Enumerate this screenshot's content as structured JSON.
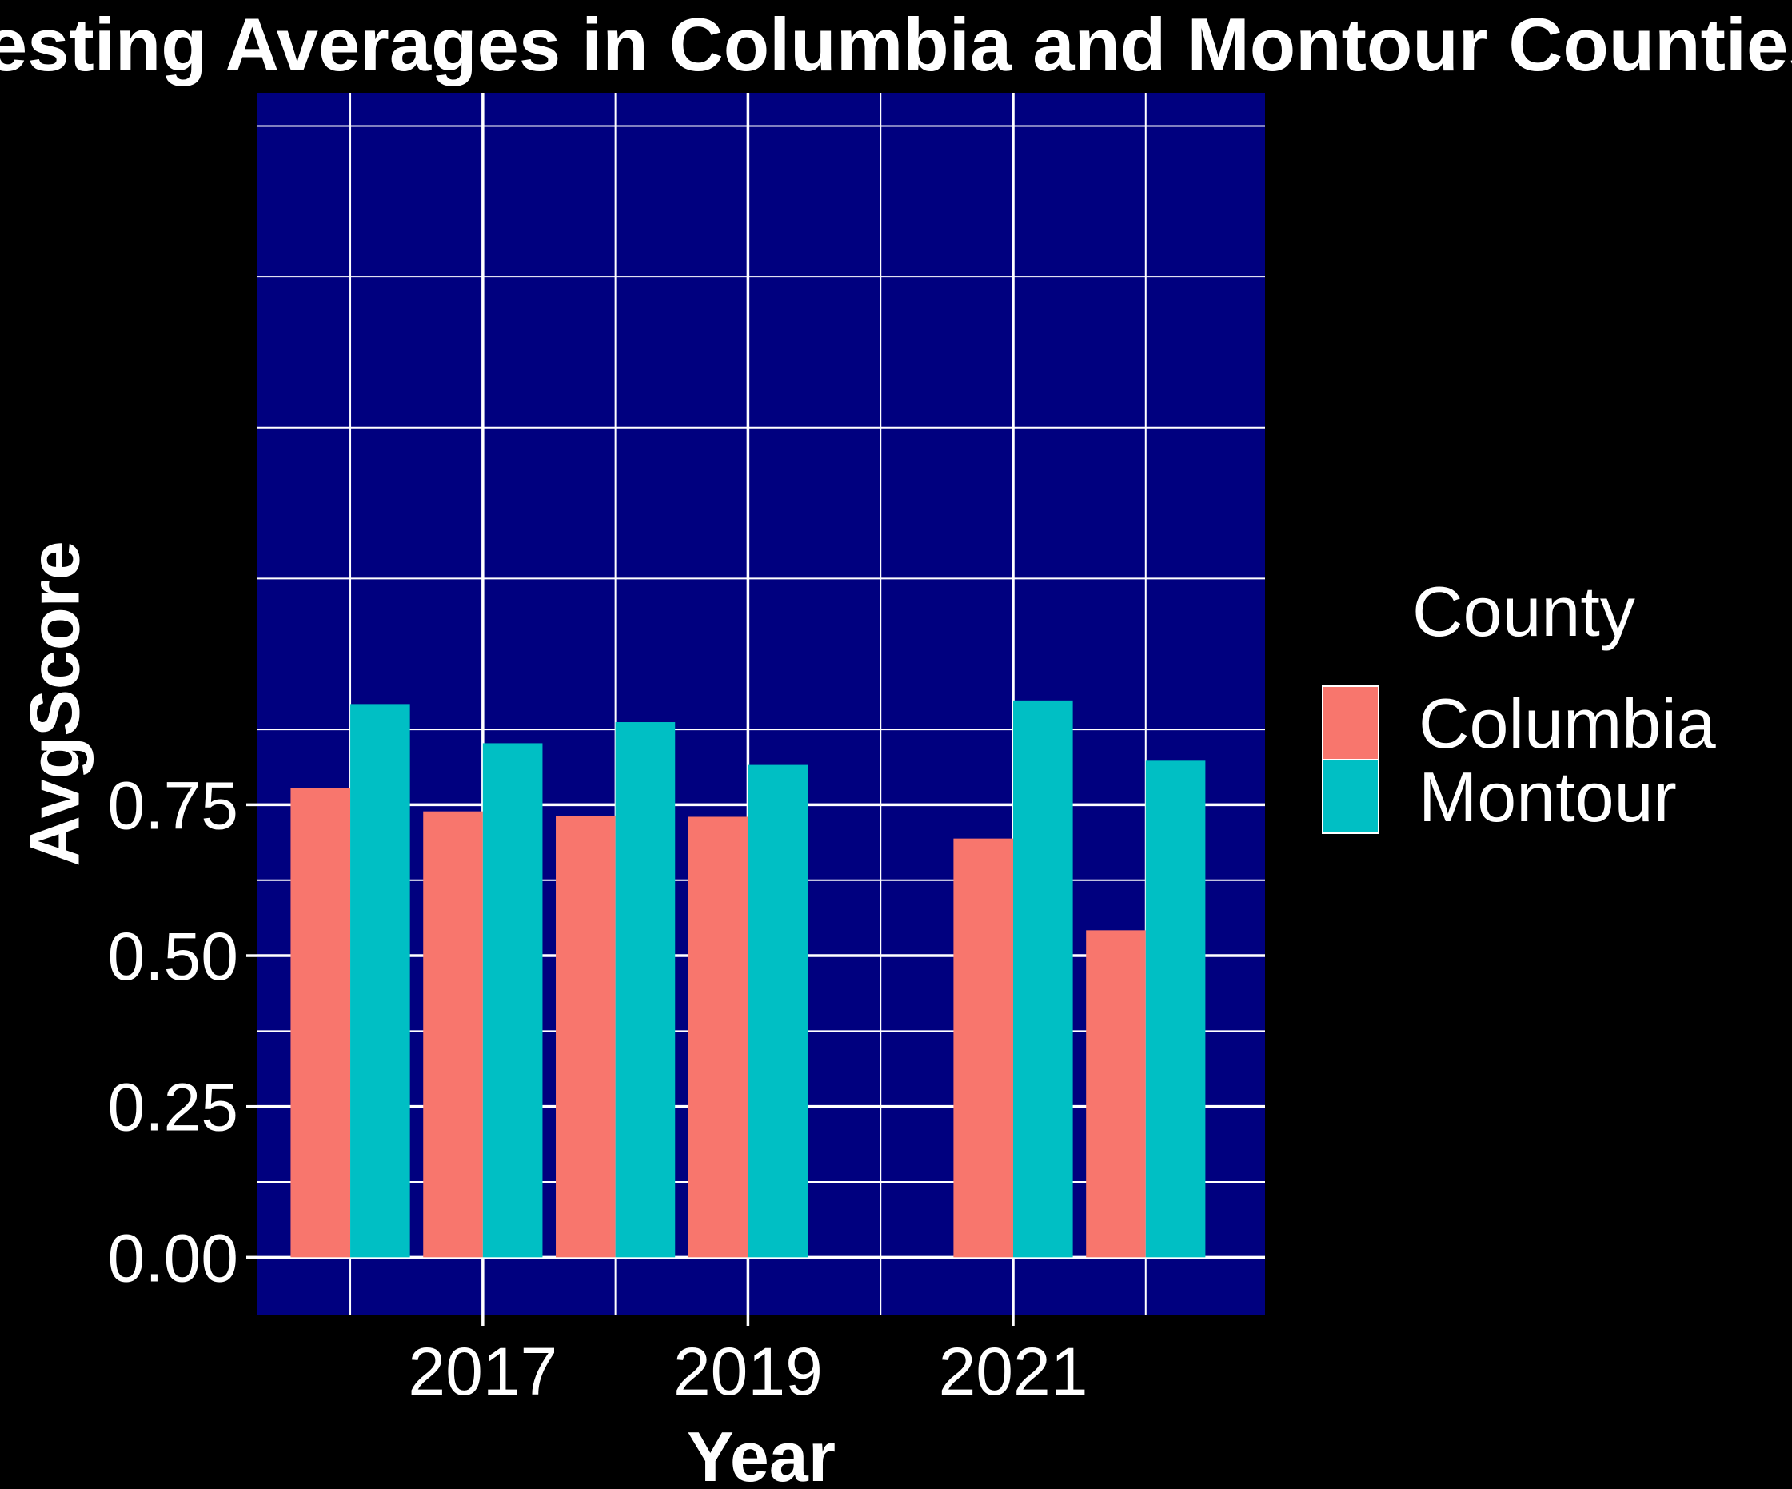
{
  "chart_data": {
    "type": "bar",
    "title": "Testing Averages in Columbia and Montour Counties",
    "xlabel": "Year",
    "ylabel": "AvgScore",
    "x": [
      2016,
      2017,
      2018,
      2019,
      2021,
      2022
    ],
    "x_tick_labels": [
      "2017",
      "2019",
      "2021"
    ],
    "x_tick_values": [
      2017,
      2019,
      2021
    ],
    "xlim": [
      2015.3,
      2022.9
    ],
    "ylim": [
      -0.095,
      1.93
    ],
    "y_ticks": [
      0.0,
      0.25,
      0.5,
      0.75
    ],
    "y_tick_labels": [
      "0.00",
      "0.25",
      "0.50",
      "0.75"
    ],
    "series": [
      {
        "name": "Columbia",
        "color": "#F8766D",
        "values": [
          0.778,
          0.739,
          0.731,
          0.73,
          0.694,
          0.542
        ]
      },
      {
        "name": "Montour",
        "color": "#00BFC4",
        "values": [
          0.917,
          0.852,
          0.887,
          0.816,
          0.923,
          0.823
        ]
      }
    ],
    "legend": {
      "title": "County",
      "position": "right"
    },
    "grid": true,
    "panel_background": "#00007F",
    "grid_color": "#FFFFFF",
    "background": "#000000"
  }
}
